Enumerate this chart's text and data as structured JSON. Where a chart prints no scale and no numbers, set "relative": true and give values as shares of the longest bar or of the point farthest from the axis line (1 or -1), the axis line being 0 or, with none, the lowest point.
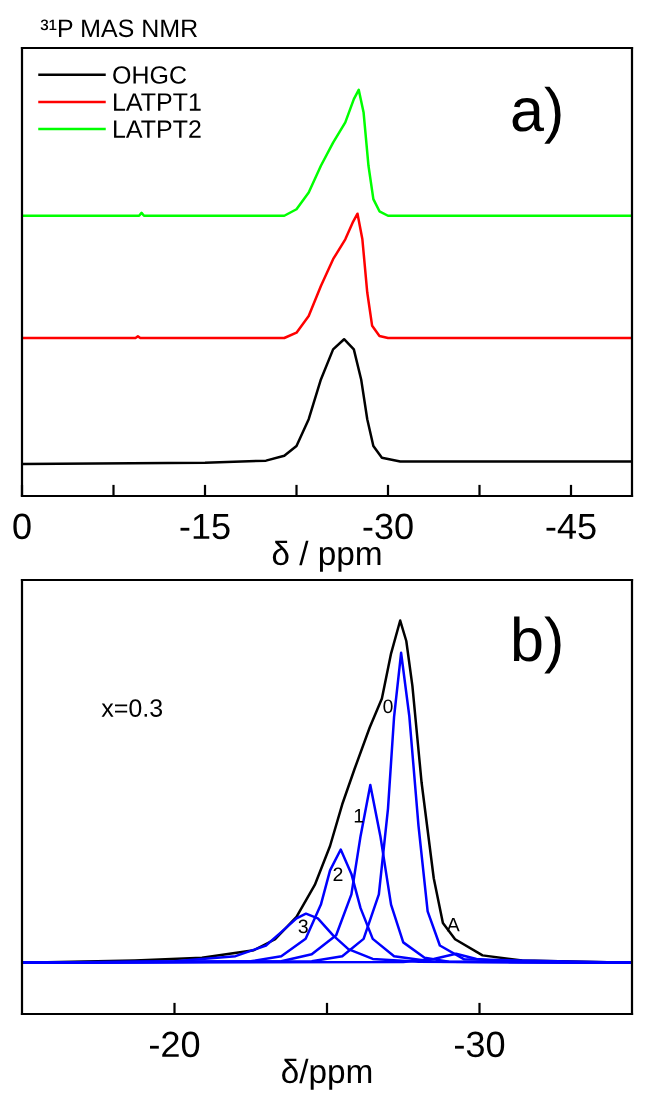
{
  "chart_data": [
    {
      "type": "line",
      "title": "³¹P MAS NMR",
      "xlabel": "δ / ppm",
      "relative": true,
      "legend": "top left",
      "annotations": [
        "a)"
      ],
      "xlim": [
        0,
        -50
      ],
      "xticks": [
        0,
        {
          "value": -7.5,
          "label": null
        },
        -15,
        {
          "value": -22.5,
          "label": null
        },
        -30,
        {
          "value": -37.5,
          "label": null
        },
        -45
      ],
      "series": [
        {
          "name": "OHGC",
          "color": "#000000",
          "x": [
            0,
            -15,
            -20,
            -21.5,
            -22.5,
            -23.5,
            -24.5,
            -25.5,
            -26.4,
            -27.2,
            -27.8,
            -28.3,
            -28.8,
            -29.5,
            -31,
            -50
          ],
          "values": [
            0.079,
            0.082,
            0.087,
            0.099,
            0.123,
            0.189,
            0.287,
            0.361,
            0.386,
            0.361,
            0.287,
            0.189,
            0.123,
            0.094,
            0.085,
            0.085
          ]
        },
        {
          "name": "LATPT1",
          "color": "#ff0000",
          "x": [
            0,
            -9.3,
            -9.5,
            -9.7,
            -21.5,
            -22.5,
            -23.5,
            -24.5,
            -25.5,
            -26.5,
            -27.1,
            -27.5,
            -27.9,
            -28.3,
            -28.7,
            -29.3,
            -30,
            -50
          ],
          "values": [
            0.389,
            0.389,
            0.393,
            0.389,
            0.389,
            0.402,
            0.443,
            0.517,
            0.583,
            0.632,
            0.673,
            0.695,
            0.632,
            0.501,
            0.419,
            0.394,
            0.389,
            0.389
          ]
        },
        {
          "name": "LATPT2",
          "color": "#00ff00",
          "x": [
            0,
            -9.6,
            -9.8,
            -10.0,
            -21.5,
            -22.5,
            -23.5,
            -24.5,
            -25.5,
            -26.5,
            -27.2,
            -27.6,
            -28.0,
            -28.4,
            -28.8,
            -29.3,
            -30,
            -50
          ],
          "values": [
            0.69,
            0.69,
            0.697,
            0.69,
            0.69,
            0.706,
            0.747,
            0.813,
            0.87,
            0.92,
            0.977,
            1.0,
            0.944,
            0.813,
            0.731,
            0.701,
            0.69,
            0.69
          ]
        }
      ]
    },
    {
      "type": "line",
      "xlabel": "δ/ppm",
      "relative": true,
      "annotations": [
        "b)",
        "x=0.3",
        "0",
        "1",
        "2",
        "3",
        "A"
      ],
      "xlim": [
        -15,
        -35
      ],
      "xticks": [
        -20,
        {
          "value": -25,
          "label": null
        },
        -30
      ],
      "series": [
        {
          "color": "#000000",
          "x": [
            -15,
            -18.7,
            -20.9,
            -22.6,
            -23.3,
            -24.0,
            -24.6,
            -25.1,
            -25.5,
            -25.9,
            -26.4,
            -26.8,
            -27.1,
            -27.4,
            -27.6,
            -27.8,
            -28.1,
            -28.5,
            -28.8,
            -29.2,
            -30.1,
            -31.4,
            -35
          ],
          "values": [
            0.13,
            0.136,
            0.143,
            0.162,
            0.19,
            0.247,
            0.328,
            0.427,
            0.533,
            0.622,
            0.728,
            0.802,
            0.916,
            1.0,
            0.948,
            0.834,
            0.589,
            0.345,
            0.231,
            0.19,
            0.149,
            0.136,
            0.13
          ]
        },
        {
          "color": "#0000ff",
          "x": [
            -15,
            -24.5,
            -25.5,
            -26.2,
            -26.7,
            -27.0,
            -27.2,
            -27.43,
            -27.7,
            -28.0,
            -28.3,
            -28.7,
            -29.5,
            -35
          ],
          "values": [
            0.13,
            0.134,
            0.147,
            0.191,
            0.304,
            0.522,
            0.756,
            0.918,
            0.756,
            0.478,
            0.261,
            0.174,
            0.139,
            0.13
          ]
        },
        {
          "color": "#0000ff",
          "x": [
            -15,
            -23.5,
            -24.5,
            -25.3,
            -25.8,
            -26.1,
            -26.42,
            -26.75,
            -27.1,
            -27.5,
            -28.2,
            -29,
            -35
          ],
          "values": [
            0.13,
            0.134,
            0.152,
            0.2,
            0.304,
            0.452,
            0.582,
            0.452,
            0.278,
            0.182,
            0.143,
            0.133,
            0.13
          ]
        },
        {
          "color": "#0000ff",
          "x": [
            -15,
            -22.5,
            -23.5,
            -24.3,
            -24.8,
            -25.1,
            -25.45,
            -25.8,
            -26.1,
            -26.5,
            -27.2,
            -28.5,
            -35
          ],
          "values": [
            0.13,
            0.134,
            0.147,
            0.191,
            0.278,
            0.365,
            0.418,
            0.356,
            0.269,
            0.191,
            0.147,
            0.133,
            0.13
          ]
        },
        {
          "color": "#0000ff",
          "x": [
            -15,
            -20,
            -22,
            -23.0,
            -23.5,
            -24.0,
            -24.31,
            -24.7,
            -25.2,
            -25.7,
            -26.5,
            -28,
            -35
          ],
          "values": [
            0.13,
            0.134,
            0.147,
            0.174,
            0.208,
            0.243,
            0.255,
            0.243,
            0.2,
            0.165,
            0.14,
            0.133,
            0.13
          ]
        },
        {
          "color": "#0000ff",
          "x": [
            -15,
            -27.5,
            -28.5,
            -29.23,
            -29.9,
            -31,
            -35
          ],
          "values": [
            0.13,
            0.132,
            0.14,
            0.153,
            0.14,
            0.132,
            0.13
          ]
        }
      ]
    }
  ]
}
